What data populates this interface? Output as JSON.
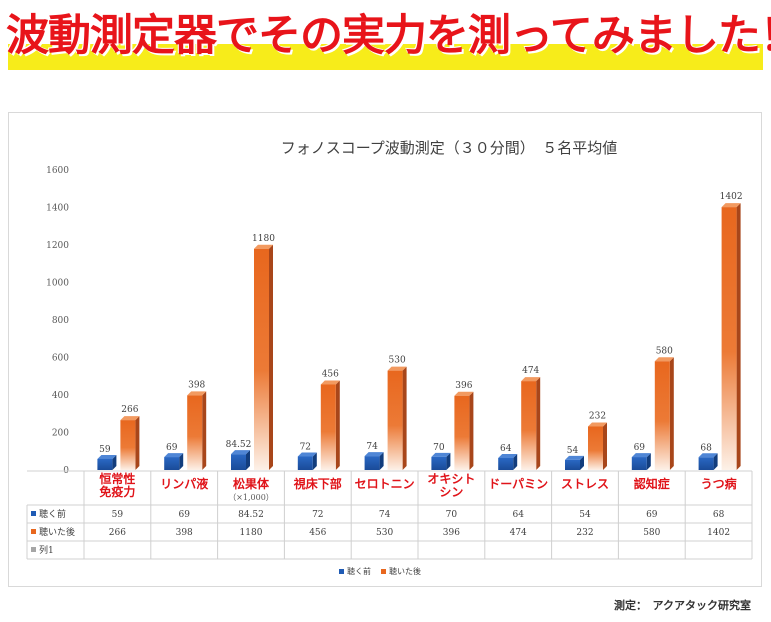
{
  "headline": "波動測定器でその実力を測ってみました！",
  "credit": "測定：　アクアタック研究室",
  "colors": {
    "before": "#1f5bb5",
    "after": "#e8671e",
    "category_label": "#e0141a",
    "headline": "#e8141a",
    "band": "#f7ec1a"
  },
  "chart_data": {
    "type": "bar",
    "title": "フォノスコープ波動測定（３０分間）　５名平均値",
    "categories": [
      "恒常性免疫力",
      "リンパ液",
      "松果体",
      "視床下部",
      "セロトニン",
      "オキシトシン",
      "ドーパミン",
      "ストレス",
      "認知症",
      "うつ病"
    ],
    "category_lines": [
      [
        "恒常性",
        "免疫力"
      ],
      [
        "リンパ液"
      ],
      [
        "松果体"
      ],
      [
        "視床下部"
      ],
      [
        "セロトニン"
      ],
      [
        "オキシト",
        "シン"
      ],
      [
        "ドーパミン"
      ],
      [
        "ストレス"
      ],
      [
        "認知症"
      ],
      [
        "うつ病"
      ]
    ],
    "category_note": {
      "index": 2,
      "text": "（×1,000）"
    },
    "series": [
      {
        "name": "聴く前",
        "values": [
          59,
          69,
          84.52,
          72,
          74,
          70,
          64,
          54,
          69,
          68
        ],
        "labels": [
          "59",
          "69",
          "84.52",
          "72",
          "74",
          "70",
          "64",
          "54",
          "69",
          "68"
        ]
      },
      {
        "name": "聴いた後",
        "values": [
          266,
          398,
          1180,
          456,
          530,
          396,
          474,
          232,
          580,
          1402
        ],
        "labels": [
          "266",
          "398",
          "1180",
          "456",
          "530",
          "396",
          "474",
          "232",
          "580",
          "1402"
        ]
      }
    ],
    "extra_table_row": "列1",
    "ylim": [
      0,
      1600
    ],
    "yticks": [
      "0",
      "200",
      "400",
      "600",
      "800",
      "1000",
      "1200",
      "1400",
      "1600"
    ],
    "grid": false,
    "legend_position": "bottom"
  }
}
